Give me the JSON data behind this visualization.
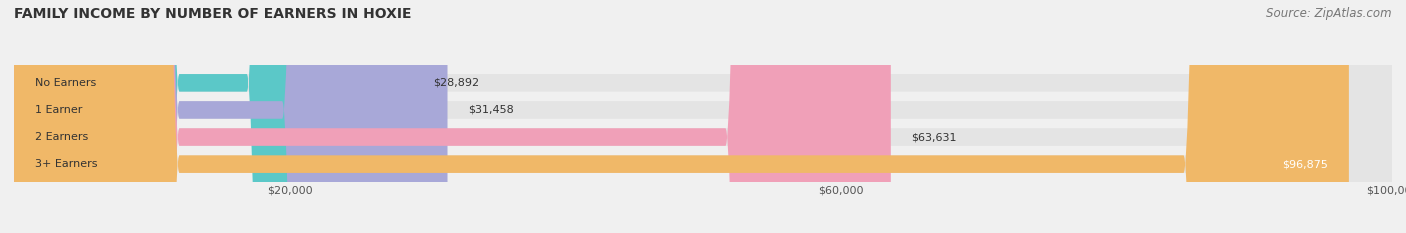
{
  "title": "FAMILY INCOME BY NUMBER OF EARNERS IN HOXIE",
  "source": "Source: ZipAtlas.com",
  "categories": [
    "No Earners",
    "1 Earner",
    "2 Earners",
    "3+ Earners"
  ],
  "values": [
    28892,
    31458,
    63631,
    96875
  ],
  "bar_colors": [
    "#5bc8c8",
    "#a8a8d8",
    "#f0a0b8",
    "#f0b868"
  ],
  "label_colors": [
    "#333333",
    "#333333",
    "#333333",
    "#ffffff"
  ],
  "value_labels": [
    "$28,892",
    "$31,458",
    "$63,631",
    "$96,875"
  ],
  "xlim": [
    0,
    100000
  ],
  "xticks": [
    20000,
    60000,
    100000
  ],
  "xticklabels": [
    "$20,000",
    "$60,000",
    "$100,000"
  ],
  "background_color": "#f0f0f0",
  "bar_bg_color": "#e4e4e4",
  "title_fontsize": 10,
  "source_fontsize": 8.5,
  "bar_height": 0.65,
  "figsize": [
    14.06,
    2.33
  ]
}
